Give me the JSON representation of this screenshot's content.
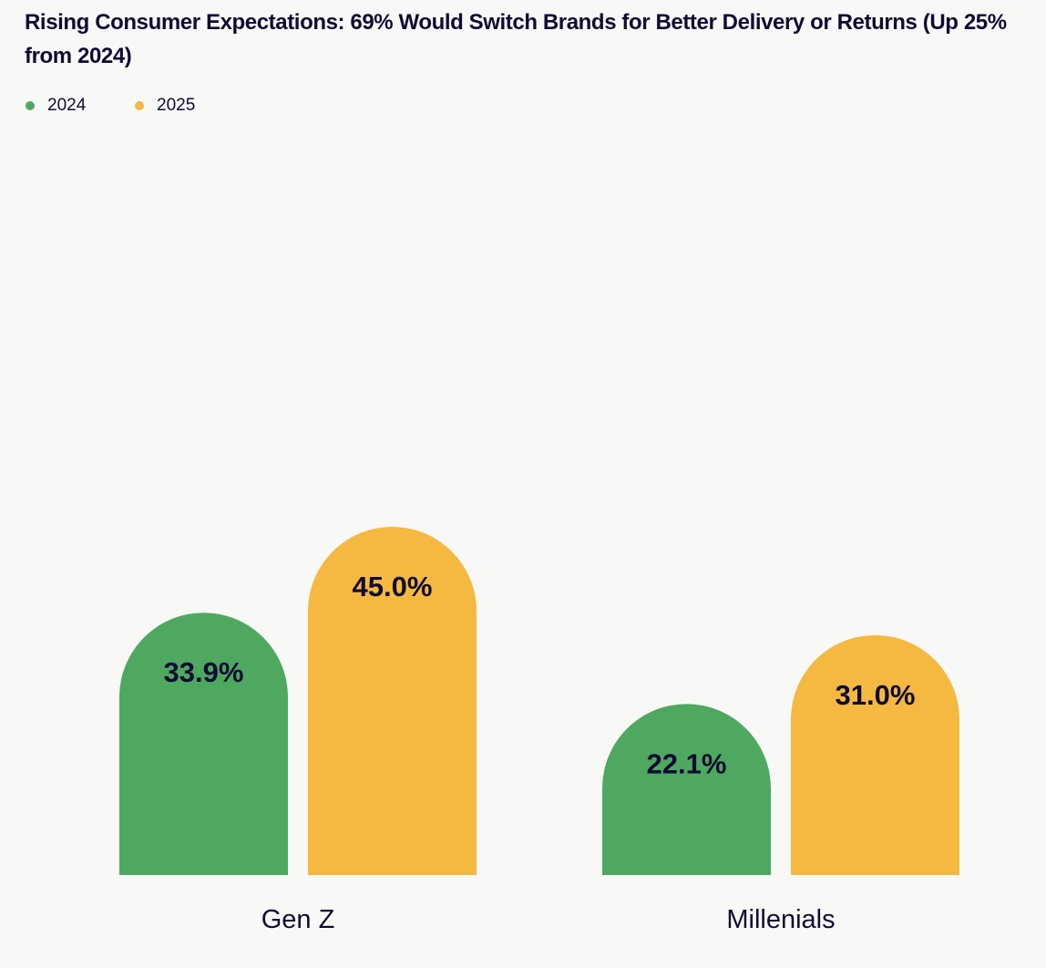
{
  "chart_data": {
    "type": "bar",
    "title": "Rising Consumer Expectations: 69% Would Switch Brands for Better Delivery or Returns (Up 25% from 2024)",
    "categories": [
      "Gen Z",
      "Millenials"
    ],
    "series": [
      {
        "name": "2024",
        "color": "#4ea860",
        "values": [
          33.9,
          22.1
        ],
        "labels": [
          "33.9%",
          "22.1%"
        ]
      },
      {
        "name": "2025",
        "color": "#f5b841",
        "values": [
          45.0,
          31.0
        ],
        "labels": [
          "45.0%",
          "31.0%"
        ]
      }
    ],
    "legend_position": "top-left",
    "grid": false,
    "ylim": [
      0,
      45
    ]
  }
}
